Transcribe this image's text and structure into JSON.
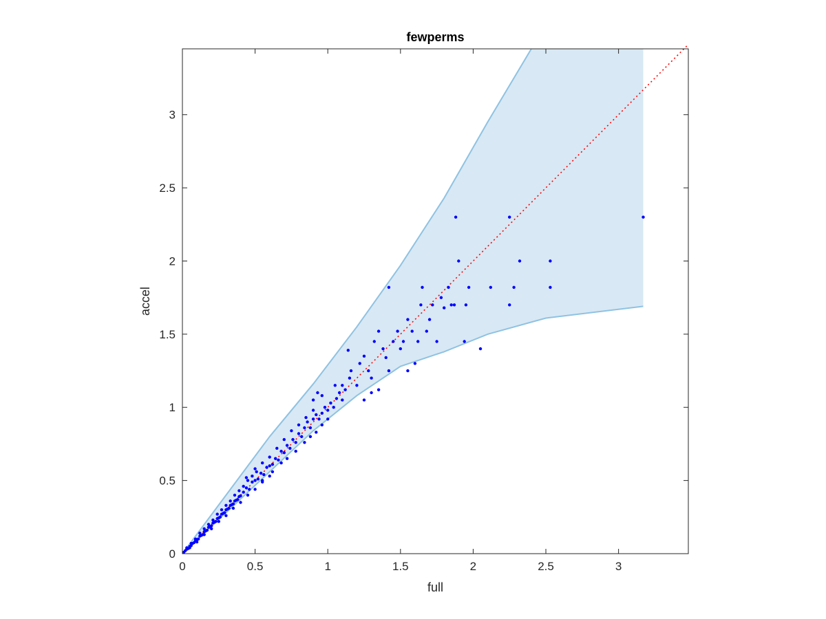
{
  "chart_data": {
    "type": "scatter",
    "title": "fewperms",
    "xlabel": "full",
    "ylabel": "accel",
    "xlim": [
      0,
      3.48
    ],
    "ylim": [
      0,
      3.45
    ],
    "xticks": [
      0,
      0.5,
      1,
      1.5,
      2,
      2.5,
      3
    ],
    "yticks": [
      0,
      0.5,
      1,
      1.5,
      2,
      2.5,
      3
    ],
    "xtick_labels": [
      "0",
      "0.5",
      "1",
      "1.5",
      "2",
      "2.5",
      "3"
    ],
    "ytick_labels": [
      "0",
      "0.5",
      "1",
      "1.5",
      "2",
      "2.5",
      "3"
    ],
    "grid": false,
    "colors": {
      "points": "#0000ff",
      "band_fill": "#d8e8f4",
      "band_edge": "#8ec2e2",
      "reference_line": "#ff0000",
      "axes": "#262626"
    },
    "reference_line": {
      "style": "dotted",
      "from": [
        0,
        0
      ],
      "to": [
        3.48,
        3.48
      ]
    },
    "band": {
      "upper": [
        [
          0,
          0
        ],
        [
          0.3,
          0.4
        ],
        [
          0.6,
          0.8
        ],
        [
          0.9,
          1.16
        ],
        [
          1.2,
          1.55
        ],
        [
          1.5,
          1.97
        ],
        [
          1.8,
          2.43
        ],
        [
          2.1,
          2.95
        ],
        [
          2.4,
          3.45
        ],
        [
          3.17,
          3.45
        ]
      ],
      "lower": [
        [
          0,
          0
        ],
        [
          0.3,
          0.28
        ],
        [
          0.6,
          0.56
        ],
        [
          0.9,
          0.84
        ],
        [
          1.2,
          1.08
        ],
        [
          1.5,
          1.28
        ],
        [
          1.8,
          1.38
        ],
        [
          2.1,
          1.5
        ],
        [
          2.5,
          1.61
        ],
        [
          3.17,
          1.69
        ]
      ]
    },
    "series": [
      {
        "points": [
          [
            0.01,
            0.01
          ],
          [
            0.02,
            0.02
          ],
          [
            0.03,
            0.03
          ],
          [
            0.04,
            0.035
          ],
          [
            0.05,
            0.05
          ],
          [
            0.06,
            0.055
          ],
          [
            0.07,
            0.07
          ],
          [
            0.08,
            0.075
          ],
          [
            0.09,
            0.09
          ],
          [
            0.1,
            0.095
          ],
          [
            0.11,
            0.1
          ],
          [
            0.12,
            0.12
          ],
          [
            0.13,
            0.125
          ],
          [
            0.14,
            0.13
          ],
          [
            0.15,
            0.15
          ],
          [
            0.16,
            0.155
          ],
          [
            0.17,
            0.16
          ],
          [
            0.18,
            0.18
          ],
          [
            0.19,
            0.185
          ],
          [
            0.2,
            0.19
          ],
          [
            0.21,
            0.21
          ],
          [
            0.22,
            0.215
          ],
          [
            0.23,
            0.22
          ],
          [
            0.24,
            0.24
          ],
          [
            0.25,
            0.245
          ],
          [
            0.26,
            0.25
          ],
          [
            0.27,
            0.27
          ],
          [
            0.28,
            0.275
          ],
          [
            0.29,
            0.28
          ],
          [
            0.3,
            0.3
          ],
          [
            0.31,
            0.305
          ],
          [
            0.32,
            0.31
          ],
          [
            0.33,
            0.33
          ],
          [
            0.34,
            0.335
          ],
          [
            0.35,
            0.34
          ],
          [
            0.36,
            0.36
          ],
          [
            0.37,
            0.365
          ],
          [
            0.38,
            0.37
          ],
          [
            0.39,
            0.39
          ],
          [
            0.4,
            0.395
          ],
          [
            0.03,
            0.04
          ],
          [
            0.06,
            0.07
          ],
          [
            0.09,
            0.1
          ],
          [
            0.12,
            0.14
          ],
          [
            0.15,
            0.17
          ],
          [
            0.18,
            0.2
          ],
          [
            0.21,
            0.23
          ],
          [
            0.24,
            0.27
          ],
          [
            0.27,
            0.3
          ],
          [
            0.3,
            0.33
          ],
          [
            0.33,
            0.36
          ],
          [
            0.36,
            0.4
          ],
          [
            0.39,
            0.43
          ],
          [
            0.42,
            0.46
          ],
          [
            0.45,
            0.5
          ],
          [
            0.48,
            0.53
          ],
          [
            0.51,
            0.56
          ],
          [
            0.05,
            0.04
          ],
          [
            0.1,
            0.08
          ],
          [
            0.15,
            0.13
          ],
          [
            0.2,
            0.17
          ],
          [
            0.25,
            0.22
          ],
          [
            0.3,
            0.26
          ],
          [
            0.35,
            0.31
          ],
          [
            0.4,
            0.35
          ],
          [
            0.45,
            0.4
          ],
          [
            0.5,
            0.44
          ],
          [
            0.55,
            0.49
          ],
          [
            0.6,
            0.53
          ],
          [
            0.42,
            0.42
          ],
          [
            0.44,
            0.45
          ],
          [
            0.46,
            0.44
          ],
          [
            0.48,
            0.49
          ],
          [
            0.5,
            0.5
          ],
          [
            0.52,
            0.51
          ],
          [
            0.54,
            0.55
          ],
          [
            0.56,
            0.54
          ],
          [
            0.58,
            0.59
          ],
          [
            0.6,
            0.6
          ],
          [
            0.62,
            0.61
          ],
          [
            0.64,
            0.65
          ],
          [
            0.66,
            0.64
          ],
          [
            0.68,
            0.7
          ],
          [
            0.7,
            0.69
          ],
          [
            0.72,
            0.74
          ],
          [
            0.74,
            0.72
          ],
          [
            0.76,
            0.78
          ],
          [
            0.78,
            0.76
          ],
          [
            0.8,
            0.82
          ],
          [
            0.82,
            0.8
          ],
          [
            0.44,
            0.52
          ],
          [
            0.5,
            0.58
          ],
          [
            0.55,
            0.62
          ],
          [
            0.6,
            0.66
          ],
          [
            0.65,
            0.72
          ],
          [
            0.7,
            0.78
          ],
          [
            0.75,
            0.84
          ],
          [
            0.8,
            0.88
          ],
          [
            0.85,
            0.93
          ],
          [
            0.9,
            0.98
          ],
          [
            0.55,
            0.5
          ],
          [
            0.62,
            0.56
          ],
          [
            0.68,
            0.62
          ],
          [
            0.72,
            0.65
          ],
          [
            0.78,
            0.7
          ],
          [
            0.84,
            0.76
          ],
          [
            0.88,
            0.8
          ],
          [
            0.92,
            0.83
          ],
          [
            0.96,
            0.88
          ],
          [
            1.0,
            0.92
          ],
          [
            0.84,
            0.86
          ],
          [
            0.86,
            0.9
          ],
          [
            0.88,
            0.86
          ],
          [
            0.9,
            0.92
          ],
          [
            0.92,
            0.95
          ],
          [
            0.94,
            0.92
          ],
          [
            0.96,
            0.96
          ],
          [
            0.98,
            1.0
          ],
          [
            1.0,
            0.98
          ],
          [
            1.02,
            1.03
          ],
          [
            1.04,
            1.0
          ],
          [
            1.06,
            1.06
          ],
          [
            1.08,
            1.1
          ],
          [
            1.1,
            1.05
          ],
          [
            1.12,
            1.12
          ],
          [
            0.9,
            1.05
          ],
          [
            0.93,
            1.1
          ],
          [
            0.96,
            1.08
          ],
          [
            1.05,
            1.15
          ],
          [
            1.1,
            1.15
          ],
          [
            1.15,
            1.2
          ],
          [
            1.14,
            1.39
          ],
          [
            1.16,
            1.25
          ],
          [
            1.2,
            1.15
          ],
          [
            1.22,
            1.3
          ],
          [
            1.25,
            1.35
          ],
          [
            1.28,
            1.25
          ],
          [
            1.3,
            1.2
          ],
          [
            1.32,
            1.45
          ],
          [
            1.35,
            1.52
          ],
          [
            1.38,
            1.4
          ],
          [
            1.4,
            1.34
          ],
          [
            1.42,
            1.25
          ],
          [
            1.45,
            1.45
          ],
          [
            1.48,
            1.52
          ],
          [
            1.5,
            1.4
          ],
          [
            1.52,
            1.45
          ],
          [
            1.55,
            1.6
          ],
          [
            1.58,
            1.52
          ],
          [
            1.6,
            1.3
          ],
          [
            1.25,
            1.05
          ],
          [
            1.3,
            1.1
          ],
          [
            1.35,
            1.12
          ],
          [
            1.42,
            1.82
          ],
          [
            1.55,
            1.25
          ],
          [
            1.62,
            1.45
          ],
          [
            1.64,
            1.7
          ],
          [
            1.65,
            1.82
          ],
          [
            1.68,
            1.52
          ],
          [
            1.7,
            1.6
          ],
          [
            1.72,
            1.7
          ],
          [
            1.75,
            1.45
          ],
          [
            1.78,
            1.75
          ],
          [
            1.8,
            1.68
          ],
          [
            1.83,
            1.82
          ],
          [
            1.85,
            1.7
          ],
          [
            1.87,
            1.7
          ],
          [
            1.88,
            2.3
          ],
          [
            1.9,
            2.0
          ],
          [
            1.94,
            1.45
          ],
          [
            1.95,
            1.7
          ],
          [
            1.97,
            1.82
          ],
          [
            2.05,
            1.4
          ],
          [
            2.12,
            1.82
          ],
          [
            2.25,
            1.7
          ],
          [
            2.25,
            2.3
          ],
          [
            2.28,
            1.82
          ],
          [
            2.32,
            2.0
          ],
          [
            2.53,
            1.82
          ],
          [
            2.53,
            2.0
          ],
          [
            3.17,
            2.3
          ]
        ]
      }
    ]
  }
}
